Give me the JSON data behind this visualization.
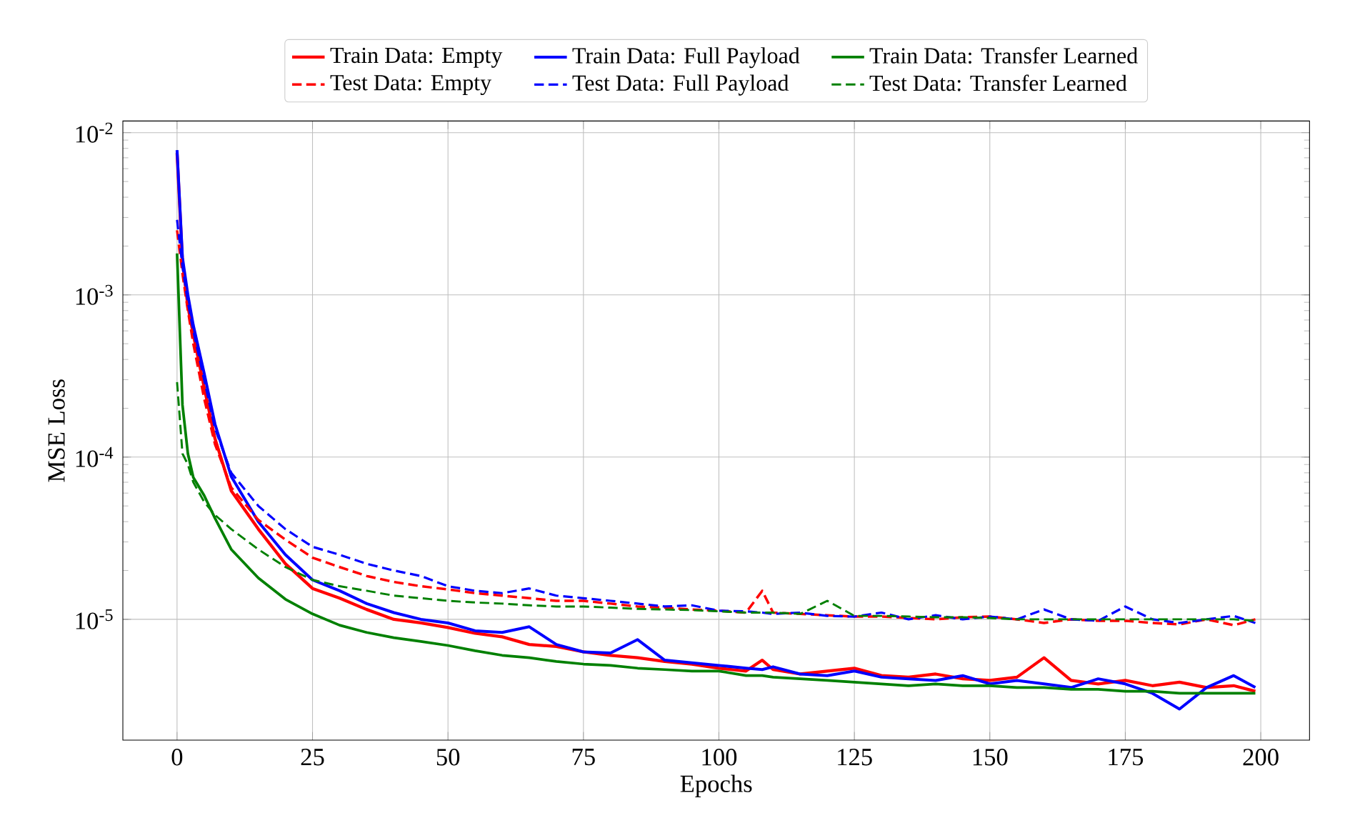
{
  "chart_data": {
    "type": "line",
    "xlabel": "Epochs",
    "ylabel": "MSE Loss",
    "log": "y",
    "grid": true,
    "legend": "top",
    "xlim": [
      -10,
      209
    ],
    "ylim": [
      1.8e-06,
      0.0118
    ],
    "xticks": [
      0,
      25,
      50,
      75,
      100,
      125,
      150,
      175,
      200
    ],
    "yticks": [
      {
        "value": 1e-05,
        "label": "10$^{-5}$"
      },
      {
        "value": 0.0001,
        "label": "10$^{-4}$"
      },
      {
        "value": 0.001,
        "label": "10$^{-3}$"
      },
      {
        "value": 0.01,
        "label": "10$^{-2}$"
      }
    ],
    "x": [
      0,
      1,
      2,
      3,
      5,
      7,
      10,
      15,
      20,
      25,
      30,
      35,
      40,
      45,
      50,
      55,
      60,
      65,
      70,
      75,
      80,
      85,
      90,
      95,
      100,
      105,
      108,
      110,
      115,
      120,
      125,
      130,
      135,
      140,
      145,
      150,
      155,
      160,
      165,
      170,
      175,
      180,
      185,
      190,
      195,
      199
    ],
    "series": [
      {
        "name": "Train Data: Empty",
        "color": "#ff0000",
        "line_style": "solid",
        "values": [
          0.0075,
          0.0016,
          0.00085,
          0.00057,
          0.00027,
          0.00013,
          6.2e-05,
          3.6e-05,
          2.2e-05,
          1.55e-05,
          1.35e-05,
          1.15e-05,
          1e-05,
          9.5e-06,
          8.9e-06,
          8.2e-06,
          7.8e-06,
          7e-06,
          6.8e-06,
          6.3e-06,
          6e-06,
          5.8e-06,
          5.5e-06,
          5.3e-06,
          5e-06,
          4.8e-06,
          5.6e-06,
          4.9e-06,
          4.6e-06,
          4.8e-06,
          5e-06,
          4.5e-06,
          4.4e-06,
          4.6e-06,
          4.3e-06,
          4.2e-06,
          4.4e-06,
          5.8e-06,
          4.2e-06,
          4e-06,
          4.2e-06,
          3.9e-06,
          4.1e-06,
          3.8e-06,
          3.9e-06,
          3.6e-06
        ]
      },
      {
        "name": "Train Data: Full Payload",
        "color": "#0000ff",
        "line_style": "solid",
        "values": [
          0.0078,
          0.0017,
          0.001,
          0.00065,
          0.00033,
          0.00016,
          7.6e-05,
          4e-05,
          2.5e-05,
          1.75e-05,
          1.5e-05,
          1.25e-05,
          1.1e-05,
          1e-05,
          9.5e-06,
          8.5e-06,
          8.3e-06,
          9e-06,
          7e-06,
          6.3e-06,
          6.2e-06,
          7.5e-06,
          5.6e-06,
          5.4e-06,
          5.2e-06,
          5e-06,
          4.9e-06,
          5.1e-06,
          4.6e-06,
          4.5e-06,
          4.8e-06,
          4.4e-06,
          4.3e-06,
          4.2e-06,
          4.5e-06,
          4e-06,
          4.2e-06,
          4e-06,
          3.8e-06,
          4.3e-06,
          4e-06,
          3.5e-06,
          2.8e-06,
          3.8e-06,
          4.5e-06,
          3.8e-06
        ]
      },
      {
        "name": "Train Data: Transfer Learned",
        "color": "#008000",
        "line_style": "solid",
        "values": [
          0.0018,
          0.00021,
          0.000105,
          7.5e-05,
          5.8e-05,
          4.2e-05,
          2.7e-05,
          1.8e-05,
          1.33e-05,
          1.08e-05,
          9.2e-06,
          8.3e-06,
          7.7e-06,
          7.3e-06,
          6.9e-06,
          6.4e-06,
          6e-06,
          5.8e-06,
          5.5e-06,
          5.3e-06,
          5.2e-06,
          5e-06,
          4.9e-06,
          4.8e-06,
          4.8e-06,
          4.5e-06,
          4.5e-06,
          4.4e-06,
          4.3e-06,
          4.2e-06,
          4.1e-06,
          4e-06,
          3.9e-06,
          4e-06,
          3.9e-06,
          3.9e-06,
          3.8e-06,
          3.8e-06,
          3.7e-06,
          3.7e-06,
          3.6e-06,
          3.6e-06,
          3.5e-06,
          3.5e-06,
          3.5e-06,
          3.5e-06
        ]
      },
      {
        "name": "Test Data: Empty",
        "color": "#ff0000",
        "line_style": "dashed",
        "values": [
          0.0025,
          0.00135,
          0.0008,
          0.0005,
          0.00023,
          0.00012,
          6.5e-05,
          4.1e-05,
          3.1e-05,
          2.4e-05,
          2.1e-05,
          1.85e-05,
          1.7e-05,
          1.6e-05,
          1.53e-05,
          1.45e-05,
          1.4e-05,
          1.35e-05,
          1.3e-05,
          1.3e-05,
          1.25e-05,
          1.2e-05,
          1.18e-05,
          1.15e-05,
          1.13e-05,
          1.1e-05,
          1.5e-05,
          1.1e-05,
          1.08e-05,
          1.06e-05,
          1.04e-05,
          1.04e-05,
          1.02e-05,
          1e-05,
          1.03e-05,
          1.04e-05,
          1e-05,
          9.5e-06,
          1e-05,
          9.8e-06,
          9.8e-06,
          9.5e-06,
          9.3e-06,
          1e-05,
          9.2e-06,
          1e-05
        ]
      },
      {
        "name": "Test Data: Full Payload",
        "color": "#0000ff",
        "line_style": "dashed",
        "values": [
          0.0029,
          0.0015,
          0.0009,
          0.0006,
          0.0003,
          0.00015,
          8e-05,
          5e-05,
          3.6e-05,
          2.8e-05,
          2.5e-05,
          2.2e-05,
          2e-05,
          1.85e-05,
          1.6e-05,
          1.5e-05,
          1.45e-05,
          1.55e-05,
          1.4e-05,
          1.35e-05,
          1.3e-05,
          1.25e-05,
          1.2e-05,
          1.22e-05,
          1.13e-05,
          1.12e-05,
          1.1e-05,
          1.08e-05,
          1.1e-05,
          1.05e-05,
          1.04e-05,
          1.1e-05,
          1e-05,
          1.06e-05,
          1e-05,
          1.04e-05,
          1e-05,
          1.15e-05,
          1e-05,
          9.8e-06,
          1.2e-05,
          1e-05,
          9.5e-06,
          1e-05,
          1.05e-05,
          9.5e-06
        ]
      },
      {
        "name": "Test Data: Transfer Learned",
        "color": "#008000",
        "line_style": "dashed",
        "values": [
          0.00029,
          0.000105,
          9e-05,
          7e-05,
          5.3e-05,
          4.4e-05,
          3.6e-05,
          2.7e-05,
          2.1e-05,
          1.75e-05,
          1.6e-05,
          1.5e-05,
          1.4e-05,
          1.35e-05,
          1.3e-05,
          1.27e-05,
          1.25e-05,
          1.22e-05,
          1.2e-05,
          1.2e-05,
          1.18e-05,
          1.16e-05,
          1.15e-05,
          1.14e-05,
          1.12e-05,
          1.1e-05,
          1.1e-05,
          1.1e-05,
          1.08e-05,
          1.3e-05,
          1.05e-05,
          1.05e-05,
          1.04e-05,
          1.03e-05,
          1.03e-05,
          1.02e-05,
          1e-05,
          1e-05,
          1e-05,
          1e-05,
          1e-05,
          1e-05,
          1e-05,
          1e-05,
          1e-05,
          9.8e-06
        ]
      }
    ]
  }
}
